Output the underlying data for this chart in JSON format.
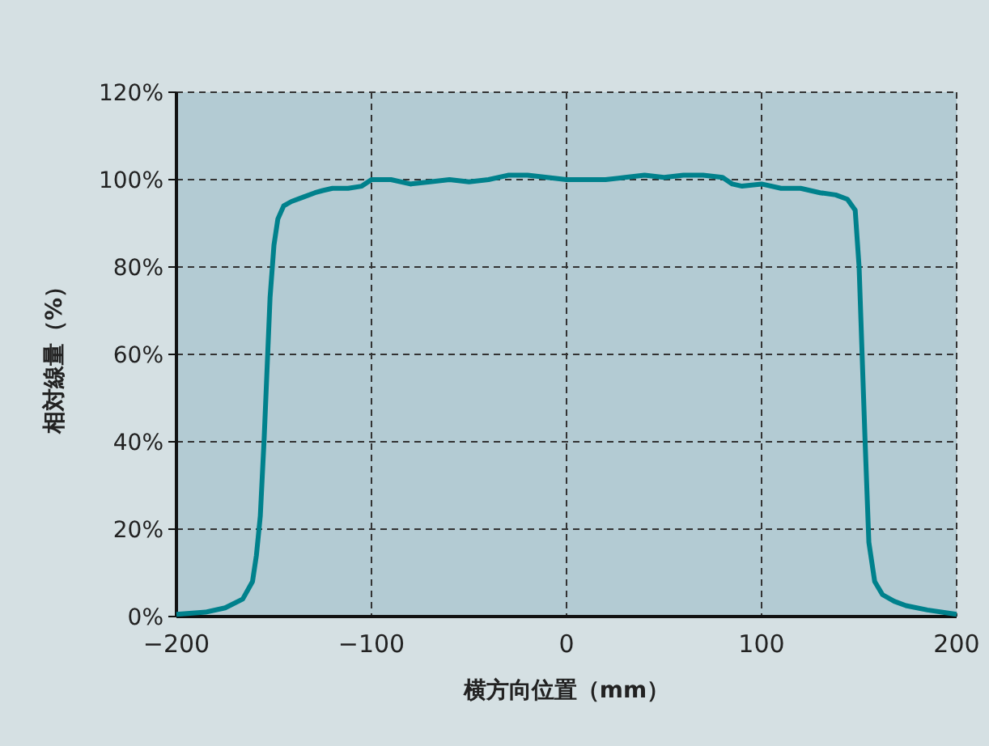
{
  "chart_data": {
    "type": "line",
    "xlabel": "横方向位置（mm）",
    "ylabel": "相対線量（%）",
    "xlim": [
      -200,
      200
    ],
    "xticks": [
      {
        "value": -200,
        "label": "−200"
      },
      {
        "value": -100,
        "label": "−100"
      },
      0,
      100,
      200
    ],
    "ylim": [
      0,
      120
    ],
    "yticks": [
      {
        "value": 0,
        "label": "0%"
      },
      {
        "value": 20,
        "label": "20%"
      },
      {
        "value": 40,
        "label": "40%"
      },
      {
        "value": 60,
        "label": "60%"
      },
      {
        "value": 80,
        "label": "80%"
      },
      {
        "value": 100,
        "label": "100%"
      },
      {
        "value": 120,
        "label": "120%"
      }
    ],
    "grid": true,
    "series": [
      {
        "color": "#00818c",
        "x": [
          -200,
          -185,
          -175,
          -166,
          -161,
          -159,
          -157,
          -155,
          -152,
          -150,
          -148,
          -145,
          -141,
          -135,
          -129,
          -125,
          -120,
          -112,
          -105,
          -100,
          -90,
          -80,
          -70,
          -60,
          -50,
          -40,
          -30,
          -20,
          -10,
          0,
          10,
          20,
          30,
          40,
          50,
          60,
          70,
          80,
          85,
          90,
          100,
          110,
          120,
          125,
          130,
          138,
          144,
          148,
          150,
          153,
          155,
          158,
          162,
          168,
          174,
          185,
          200
        ],
        "values": [
          0.5,
          1,
          2,
          4,
          8,
          14,
          23,
          41,
          73,
          85,
          91,
          94,
          95,
          96,
          97,
          97.5,
          98,
          98,
          98.5,
          100,
          100,
          99,
          99.5,
          100,
          99.5,
          100,
          101,
          101,
          100.5,
          100,
          100,
          100,
          100.5,
          101,
          100.5,
          101,
          101,
          100.5,
          99,
          98.5,
          99,
          98,
          98,
          97.5,
          97,
          96.5,
          95.5,
          93,
          80,
          41,
          17,
          8,
          5,
          3.5,
          2.5,
          1.5,
          0.5
        ]
      }
    ]
  }
}
